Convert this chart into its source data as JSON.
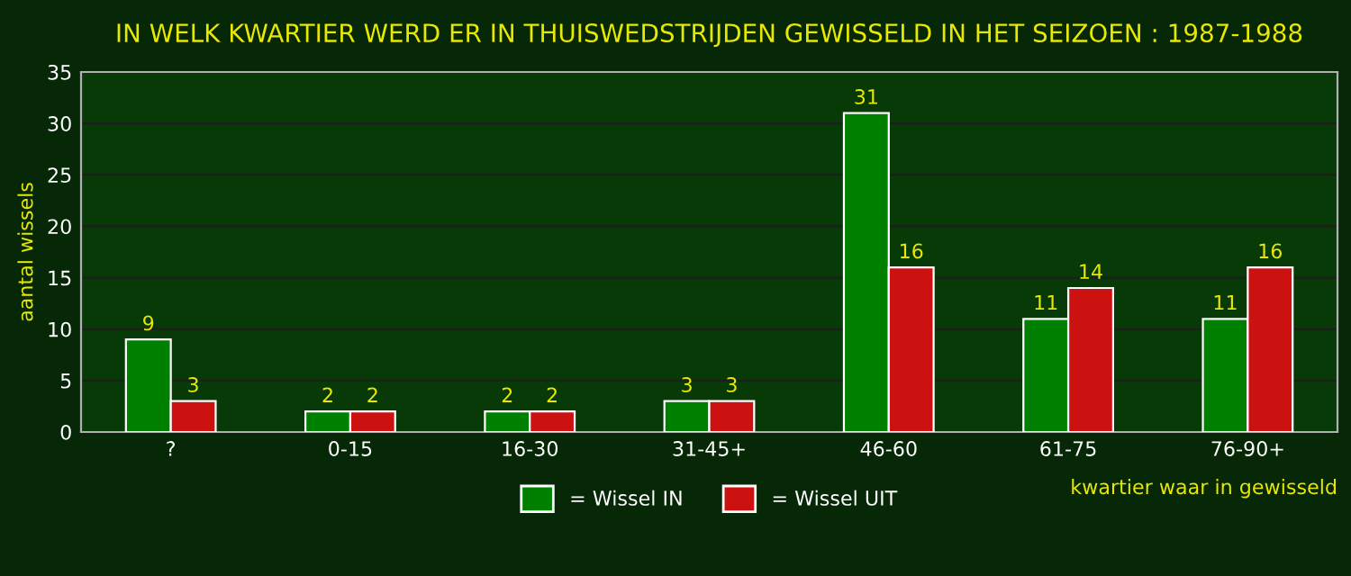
{
  "chart_data": {
    "type": "bar",
    "title": "IN WELK KWARTIER WERD ER IN THUISWEDSTRIJDEN GEWISSELD IN HET SEIZOEN : 1987-1988",
    "xlabel": "kwartier waar in gewisseld",
    "ylabel": "aantal wissels",
    "categories": [
      "?",
      "0-15",
      "16-30",
      "31-45+",
      "46-60",
      "61-75",
      "76-90+"
    ],
    "series": [
      {
        "name": "= Wissel IN",
        "color": "#008000",
        "values": [
          9,
          2,
          2,
          3,
          31,
          11,
          11
        ]
      },
      {
        "name": "= Wissel UIT",
        "color": "#cc1111",
        "values": [
          3,
          2,
          2,
          3,
          16,
          14,
          16
        ]
      }
    ],
    "ylim": [
      0,
      35
    ],
    "yticks": [
      0,
      5,
      10,
      15,
      20,
      25,
      30,
      35
    ],
    "grid": "y",
    "legend": "bottom",
    "data_labels": true
  }
}
